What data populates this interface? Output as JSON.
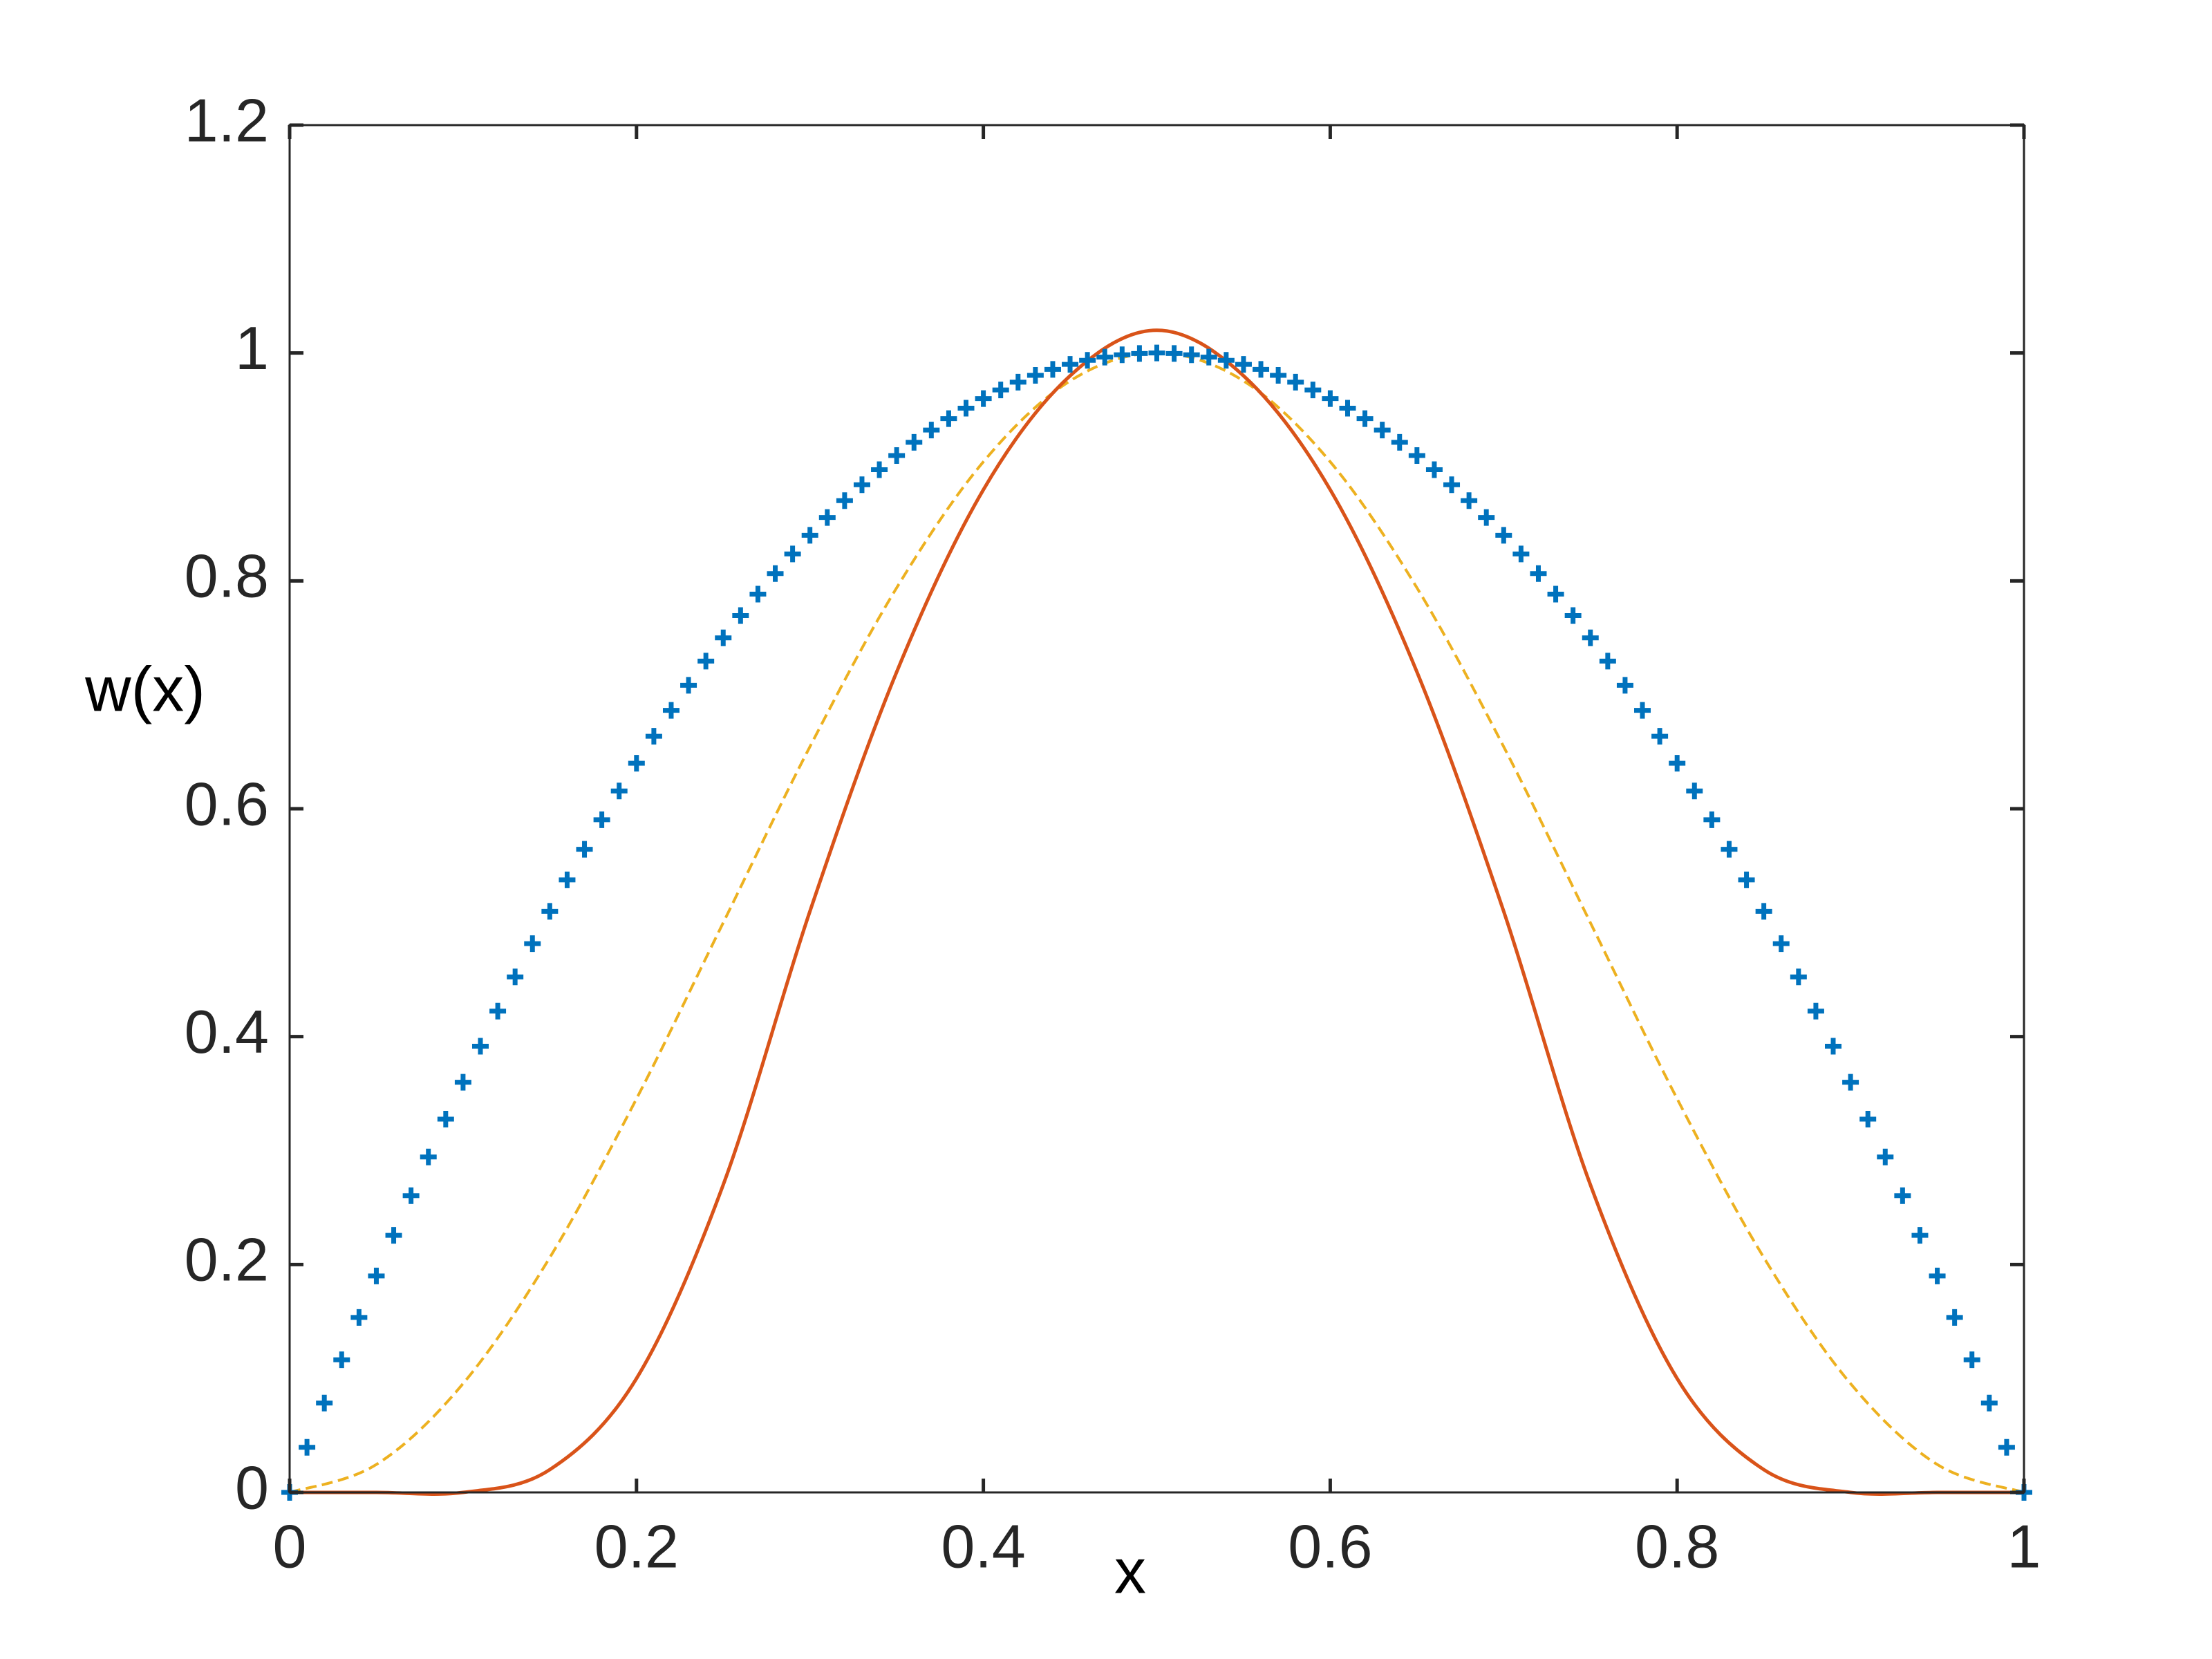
{
  "chart_data": {
    "type": "line",
    "xlabel": "x",
    "ylabel": "w(x)",
    "xlim": [
      0,
      1
    ],
    "ylim": [
      0,
      1.2
    ],
    "xticks": [
      0,
      0.2,
      0.4,
      0.6,
      0.8,
      1
    ],
    "yticks": [
      0,
      0.2,
      0.4,
      0.6,
      0.8,
      1,
      1.2
    ],
    "series": [
      {
        "color": "#0072bd",
        "style": "marker",
        "x": [
          0,
          0.01,
          0.02,
          0.03,
          0.04,
          0.05,
          0.06,
          0.07,
          0.08,
          0.09,
          0.1,
          0.11,
          0.12,
          0.13,
          0.14,
          0.15,
          0.16,
          0.17,
          0.18,
          0.19,
          0.2,
          0.21,
          0.22,
          0.23,
          0.24,
          0.25,
          0.26,
          0.27,
          0.28,
          0.29,
          0.3,
          0.31,
          0.32,
          0.33,
          0.34,
          0.35,
          0.36,
          0.37,
          0.38,
          0.39,
          0.4,
          0.41,
          0.42,
          0.43,
          0.44,
          0.45,
          0.46,
          0.47,
          0.48,
          0.49,
          0.5,
          0.51,
          0.52,
          0.53,
          0.54,
          0.55,
          0.56,
          0.57,
          0.58,
          0.59,
          0.6,
          0.61,
          0.62,
          0.63,
          0.64,
          0.65,
          0.66,
          0.67,
          0.68,
          0.69,
          0.7,
          0.71,
          0.72,
          0.73,
          0.74,
          0.75,
          0.76,
          0.77,
          0.78,
          0.79,
          0.8,
          0.81,
          0.82,
          0.83,
          0.84,
          0.85,
          0.86,
          0.87,
          0.88,
          0.89,
          0.9,
          0.91,
          0.92,
          0.93,
          0.94,
          0.95,
          0.96,
          0.97,
          0.98,
          0.99,
          1
        ],
        "values": [
          0,
          0.0396,
          0.0784,
          0.1164,
          0.1536,
          0.19,
          0.2256,
          0.2604,
          0.2944,
          0.3276,
          0.36,
          0.3916,
          0.4224,
          0.4524,
          0.4816,
          0.51,
          0.5376,
          0.5644,
          0.5904,
          0.6156,
          0.64,
          0.6636,
          0.6864,
          0.7084,
          0.7296,
          0.75,
          0.7696,
          0.7884,
          0.8064,
          0.8236,
          0.84,
          0.8556,
          0.8704,
          0.8844,
          0.8976,
          0.91,
          0.9216,
          0.9324,
          0.9424,
          0.9516,
          0.96,
          0.9676,
          0.9744,
          0.9804,
          0.9856,
          0.99,
          0.9936,
          0.9964,
          0.9984,
          0.9996,
          1,
          0.9996,
          0.9984,
          0.9964,
          0.9936,
          0.99,
          0.9856,
          0.9804,
          0.9744,
          0.9676,
          0.96,
          0.9516,
          0.9424,
          0.9324,
          0.9216,
          0.91,
          0.8976,
          0.8844,
          0.8704,
          0.8556,
          0.84,
          0.8236,
          0.8064,
          0.7884,
          0.7696,
          0.75,
          0.7296,
          0.7084,
          0.6864,
          0.6636,
          0.64,
          0.6156,
          0.5904,
          0.5644,
          0.5376,
          0.51,
          0.4816,
          0.4524,
          0.4224,
          0.3916,
          0.36,
          0.3276,
          0.2944,
          0.2604,
          0.2256,
          0.19,
          0.1536,
          0.1164,
          0.0784,
          0.0396,
          0
        ]
      },
      {
        "color": "#edb120",
        "style": "dashed",
        "x": [
          0,
          0.05,
          0.1,
          0.15,
          0.2,
          0.25,
          0.3,
          0.35,
          0.4,
          0.45,
          0.5,
          0.55,
          0.6,
          0.65,
          0.7,
          0.75,
          0.8,
          0.85,
          0.9,
          0.95,
          1
        ],
        "values": [
          0,
          0.0245,
          0.0955,
          0.2061,
          0.3455,
          0.5,
          0.6545,
          0.7939,
          0.9045,
          0.9755,
          1,
          0.9755,
          0.9045,
          0.7939,
          0.6545,
          0.5,
          0.3455,
          0.2061,
          0.0955,
          0.0245,
          0
        ]
      },
      {
        "color": "#d95319",
        "style": "solid",
        "x": [
          0,
          0.05,
          0.1,
          0.15,
          0.2,
          0.25,
          0.3,
          0.35,
          0.4,
          0.45,
          0.5,
          0.55,
          0.6,
          0.65,
          0.7,
          0.75,
          0.8,
          0.85,
          0.9,
          0.95,
          1
        ],
        "values": [
          0,
          0,
          0,
          0.02,
          0.1,
          0.27,
          0.51,
          0.72,
          0.88,
          0.98,
          1.02,
          0.98,
          0.88,
          0.72,
          0.51,
          0.27,
          0.1,
          0.02,
          0,
          0,
          0
        ]
      }
    ]
  }
}
